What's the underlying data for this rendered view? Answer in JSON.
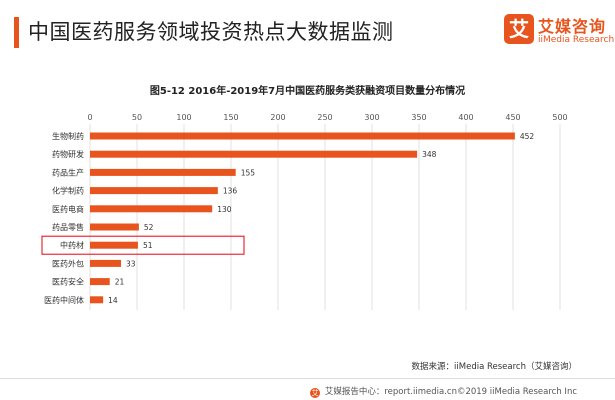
{
  "header": {
    "title": "中国医药服务领域投资热点大数据监测"
  },
  "logo": {
    "badge": "艾",
    "name_cn": "艾媒咨询",
    "name_en": "iiMedia Research"
  },
  "colors": {
    "accent": "#e8541e",
    "bar": "#e8541e",
    "highlight_box": "#e60012",
    "grid": "#d9d9d9"
  },
  "chart_data": {
    "type": "bar",
    "orientation": "horizontal",
    "title": "图5-12 2016年-2019年7月中国医药服务类获融资项目数量分布情况",
    "categories": [
      "生物制药",
      "药物研发",
      "药品生产",
      "化学制药",
      "医药电商",
      "药品零售",
      "中药材",
      "医药外包",
      "医药安全",
      "医药中间体"
    ],
    "values": [
      452,
      348,
      155,
      136,
      130,
      52,
      51,
      33,
      21,
      14
    ],
    "xlim": [
      0,
      500
    ],
    "xticks": [
      0,
      50,
      100,
      150,
      200,
      250,
      300,
      350,
      400,
      450,
      500
    ],
    "xlabel": "",
    "ylabel": "",
    "grid": true,
    "highlighted_category": "中药材"
  },
  "source": {
    "text": "数据来源：iiMedia  Research（艾媒咨询）"
  },
  "footer": {
    "icon": "艾",
    "text": "艾媒报告中心：report.iimedia.cn©2019 iiMedia Research Inc"
  }
}
